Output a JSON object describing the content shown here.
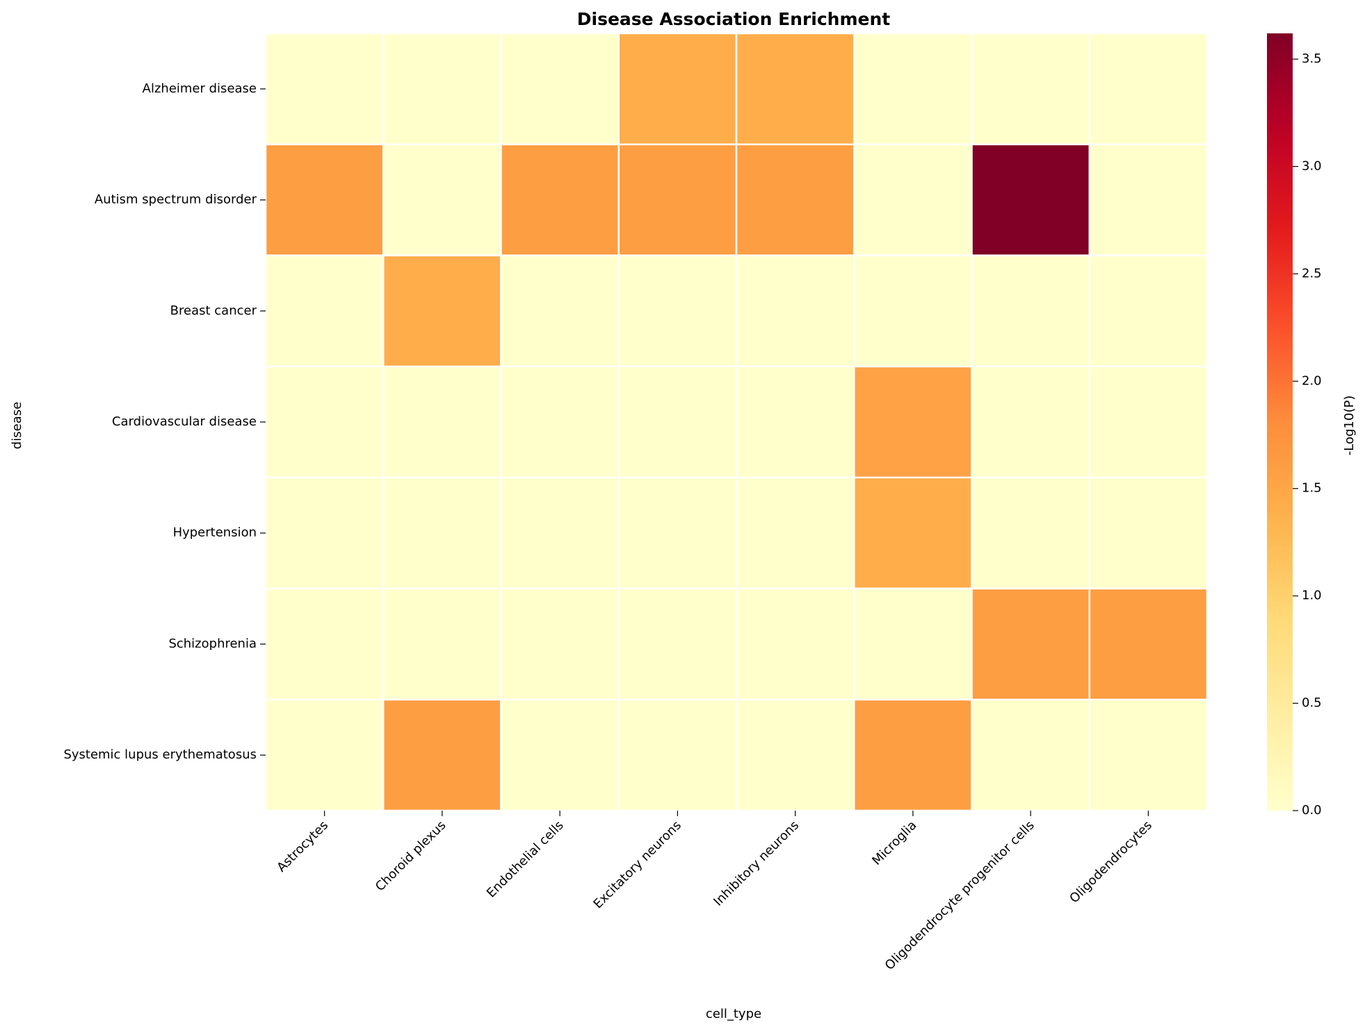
{
  "chart_data": {
    "type": "heatmap",
    "title": "Disease Association Enrichment",
    "xlabel": "cell_type",
    "ylabel": "disease",
    "colorbar_label": "-Log10(P)",
    "colormap": "YlOrRd",
    "vlim": [
      0,
      3.62
    ],
    "colorbar_ticks": [
      "0.0",
      "0.5",
      "1.0",
      "1.5",
      "2.0",
      "2.5",
      "3.0",
      "3.5"
    ],
    "columns": [
      "Astrocytes",
      "Choroid plexus",
      "Endothelial cells",
      "Excitatory neurons",
      "Inhibitory neurons",
      "Microglia",
      "Oligodendrocyte progenitor cells",
      "Oligodendrocytes"
    ],
    "rows": [
      "Alzheimer disease",
      "Autism spectrum disorder",
      "Breast cancer",
      "Cardiovascular disease",
      "Hypertension",
      "Schizophrenia",
      "Systemic lupus erythematosus"
    ],
    "values": [
      [
        0,
        0,
        0,
        1.42,
        1.42,
        0,
        0,
        0
      ],
      [
        1.6,
        0,
        1.6,
        1.6,
        1.6,
        0,
        3.62,
        0
      ],
      [
        0,
        1.42,
        0,
        0,
        0,
        0,
        0,
        0
      ],
      [
        0,
        0,
        0,
        0,
        0,
        1.55,
        0,
        0
      ],
      [
        0,
        0,
        0,
        0,
        0,
        1.42,
        0,
        0
      ],
      [
        0,
        0,
        0,
        0,
        0,
        0,
        1.6,
        1.6
      ],
      [
        0,
        1.6,
        0,
        0,
        0,
        1.6,
        0,
        0
      ]
    ]
  }
}
